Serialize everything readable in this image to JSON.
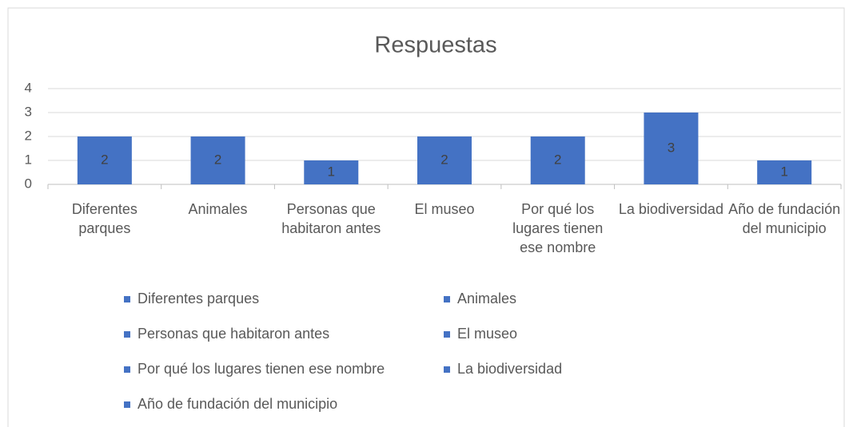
{
  "chart_data": {
    "type": "bar",
    "title": "Respuestas",
    "categories": [
      "Diferentes parques",
      "Animales",
      "Personas que habitaron antes",
      "El museo",
      "Por qué los lugares tienen ese nombre",
      "La biodiversidad",
      "Año de fundación del municipio"
    ],
    "values": [
      2,
      2,
      1,
      2,
      2,
      3,
      1
    ],
    "color": "#4472c4",
    "ylim": [
      0,
      4
    ],
    "yticks": [
      0,
      1,
      2,
      3,
      4
    ],
    "grid": true,
    "legend": "bottom",
    "data_labels": true
  }
}
